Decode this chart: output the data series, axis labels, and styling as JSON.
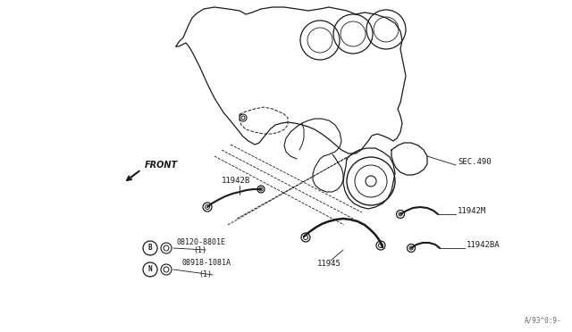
{
  "bg_color": "#ffffff",
  "line_color": "#1a1a1a",
  "watermark": "A/93^0:9-",
  "labels": {
    "front": "FRONT",
    "sec490": "SEC.490",
    "l11942B": "11942B",
    "l11942M": "11942M",
    "l11942BA": "11942BA",
    "l11945": "11945",
    "l08120": "08120-8801E",
    "l08120_qty": "(1)",
    "l08918": "08918-1081A",
    "l08918_qty": "(1)",
    "circle_B": "B",
    "circle_N": "N"
  },
  "font_size_label": 6.5,
  "font_size_small": 6.0
}
